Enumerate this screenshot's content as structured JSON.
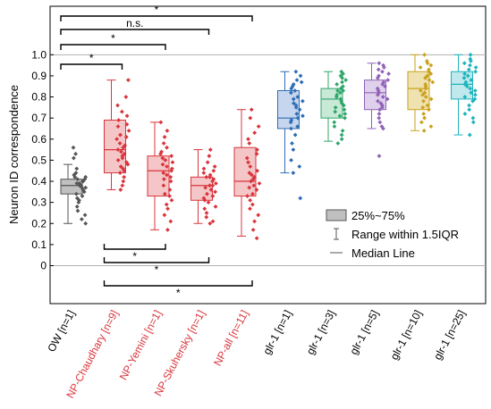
{
  "chart_data": {
    "type": "box",
    "ylabel": "Neuron ID correspondence",
    "ylim": [
      -0.18,
      1.23
    ],
    "yticks": [
      "0",
      "0.1",
      "0.2",
      "0.3",
      "0.4",
      "0.5",
      "0.6",
      "0.7",
      "0.8",
      "0.9",
      "1.0"
    ],
    "reference_lines": [
      0,
      1.0
    ],
    "categories": [
      {
        "label": "OW [n=1]",
        "label_color": "#000000",
        "color": "#555555",
        "fill": "#c0c0c0",
        "q1": 0.34,
        "median": 0.38,
        "q3": 0.41,
        "whisker_low": 0.2,
        "whisker_high": 0.48,
        "points": [
          0.56,
          0.53,
          0.51,
          0.46,
          0.44,
          0.43,
          0.42,
          0.42,
          0.41,
          0.41,
          0.4,
          0.4,
          0.39,
          0.39,
          0.38,
          0.38,
          0.37,
          0.37,
          0.36,
          0.35,
          0.34,
          0.33,
          0.32,
          0.31,
          0.3,
          0.28,
          0.26,
          0.24,
          0.22,
          0.2
        ]
      },
      {
        "label": "NP-Chaudhary [n=9]",
        "label_color": "#d9353c",
        "color": "#d9353c",
        "fill": "#f4c6c8",
        "q1": 0.44,
        "median": 0.55,
        "q3": 0.69,
        "whisker_low": 0.36,
        "whisker_high": 0.88,
        "points": [
          0.88,
          0.8,
          0.76,
          0.73,
          0.71,
          0.69,
          0.67,
          0.66,
          0.64,
          0.62,
          0.61,
          0.6,
          0.58,
          0.57,
          0.56,
          0.55,
          0.54,
          0.53,
          0.52,
          0.51,
          0.5,
          0.49,
          0.48,
          0.47,
          0.46,
          0.45,
          0.44,
          0.42,
          0.4,
          0.38,
          0.36
        ]
      },
      {
        "label": "NP-Yemini [n=1]",
        "label_color": "#d9353c",
        "color": "#d9353c",
        "fill": "#f4c6c8",
        "q1": 0.33,
        "median": 0.45,
        "q3": 0.52,
        "whisker_low": 0.17,
        "whisker_high": 0.68,
        "points": [
          0.68,
          0.64,
          0.61,
          0.58,
          0.56,
          0.54,
          0.53,
          0.52,
          0.51,
          0.5,
          0.49,
          0.48,
          0.47,
          0.46,
          0.45,
          0.44,
          0.43,
          0.42,
          0.41,
          0.4,
          0.38,
          0.36,
          0.34,
          0.33,
          0.31,
          0.29,
          0.27,
          0.24,
          0.21,
          0.17
        ]
      },
      {
        "label": "NP-Skuhersky [n=1]",
        "label_color": "#d9353c",
        "color": "#d9353c",
        "fill": "#f4c6c8",
        "q1": 0.31,
        "median": 0.38,
        "q3": 0.42,
        "whisker_low": 0.2,
        "whisker_high": 0.55,
        "points": [
          0.55,
          0.52,
          0.49,
          0.47,
          0.46,
          0.45,
          0.44,
          0.43,
          0.42,
          0.42,
          0.41,
          0.4,
          0.39,
          0.38,
          0.38,
          0.37,
          0.36,
          0.35,
          0.34,
          0.33,
          0.32,
          0.31,
          0.3,
          0.28,
          0.27,
          0.25,
          0.23,
          0.21,
          0.2
        ]
      },
      {
        "label": "NP-all [n=11]",
        "label_color": "#d9353c",
        "color": "#d9353c",
        "fill": "#f4c6c8",
        "q1": 0.33,
        "median": 0.4,
        "q3": 0.56,
        "whisker_low": 0.14,
        "whisker_high": 0.74,
        "points": [
          0.74,
          0.7,
          0.66,
          0.63,
          0.6,
          0.58,
          0.55,
          0.53,
          0.51,
          0.49,
          0.47,
          0.45,
          0.44,
          0.43,
          0.42,
          0.41,
          0.4,
          0.39,
          0.38,
          0.37,
          0.36,
          0.34,
          0.33,
          0.31,
          0.29,
          0.27,
          0.24,
          0.21,
          0.17,
          0.13
        ]
      },
      {
        "label": "glr-1 [n=1]",
        "label_color": "#000000",
        "color": "#2e6db5",
        "fill": "#c6d6ee",
        "q1": 0.65,
        "median": 0.7,
        "q3": 0.83,
        "whisker_low": 0.44,
        "whisker_high": 0.92,
        "points": [
          0.92,
          0.9,
          0.88,
          0.87,
          0.86,
          0.85,
          0.84,
          0.83,
          0.82,
          0.8,
          0.79,
          0.78,
          0.77,
          0.76,
          0.75,
          0.74,
          0.72,
          0.71,
          0.7,
          0.69,
          0.68,
          0.66,
          0.65,
          0.62,
          0.58,
          0.55,
          0.5,
          0.47,
          0.44,
          0.32
        ]
      },
      {
        "label": "glr-1 [n=3]",
        "label_color": "#000000",
        "color": "#2fa66a",
        "fill": "#c8e9d6",
        "q1": 0.7,
        "median": 0.79,
        "q3": 0.84,
        "whisker_low": 0.59,
        "whisker_high": 0.92,
        "points": [
          0.92,
          0.91,
          0.9,
          0.89,
          0.88,
          0.87,
          0.86,
          0.85,
          0.84,
          0.83,
          0.83,
          0.82,
          0.81,
          0.8,
          0.79,
          0.78,
          0.77,
          0.76,
          0.75,
          0.74,
          0.73,
          0.72,
          0.71,
          0.7,
          0.68,
          0.66,
          0.64,
          0.62,
          0.6,
          0.58
        ]
      },
      {
        "label": "glr-1 [n=5]",
        "label_color": "#000000",
        "color": "#9162b8",
        "fill": "#dfd0ec",
        "q1": 0.74,
        "median": 0.82,
        "q3": 0.88,
        "whisker_low": 0.65,
        "whisker_high": 0.96,
        "points": [
          0.96,
          0.95,
          0.94,
          0.93,
          0.92,
          0.91,
          0.9,
          0.89,
          0.88,
          0.87,
          0.86,
          0.85,
          0.84,
          0.83,
          0.82,
          0.81,
          0.8,
          0.79,
          0.78,
          0.77,
          0.76,
          0.75,
          0.74,
          0.72,
          0.7,
          0.68,
          0.66,
          0.65,
          0.52
        ]
      },
      {
        "label": "glr-1 [n=10]",
        "label_color": "#000000",
        "color": "#c9a21f",
        "fill": "#f0e2b0",
        "q1": 0.74,
        "median": 0.84,
        "q3": 0.92,
        "whisker_low": 0.64,
        "whisker_high": 1.0,
        "points": [
          1.0,
          0.97,
          0.96,
          0.95,
          0.94,
          0.93,
          0.92,
          0.91,
          0.9,
          0.89,
          0.88,
          0.87,
          0.86,
          0.85,
          0.84,
          0.83,
          0.82,
          0.81,
          0.8,
          0.79,
          0.78,
          0.76,
          0.75,
          0.74,
          0.72,
          0.7,
          0.68,
          0.66,
          0.64
        ]
      },
      {
        "label": "glr-1 [n=25]",
        "label_color": "#000000",
        "color": "#1fb3bd",
        "fill": "#bfe9ec",
        "q1": 0.79,
        "median": 0.86,
        "q3": 0.92,
        "whisker_low": 0.62,
        "whisker_high": 1.0,
        "points": [
          1.0,
          0.98,
          0.97,
          0.96,
          0.95,
          0.94,
          0.93,
          0.92,
          0.91,
          0.9,
          0.89,
          0.88,
          0.87,
          0.86,
          0.85,
          0.84,
          0.83,
          0.82,
          0.81,
          0.8,
          0.79,
          0.78,
          0.76,
          0.74,
          0.72,
          0.7,
          0.68,
          0.62
        ]
      }
    ],
    "significance": [
      {
        "from": 0,
        "to": 4,
        "label": "*",
        "position": "above",
        "level": 4
      },
      {
        "from": 0,
        "to": 3,
        "label": "n.s.",
        "position": "above",
        "level": 3
      },
      {
        "from": 0,
        "to": 2,
        "label": "*",
        "position": "above",
        "level": 2
      },
      {
        "from": 0,
        "to": 1,
        "label": "*",
        "position": "above",
        "level": 1
      },
      {
        "from": 1,
        "to": 2,
        "label": "*",
        "position": "below",
        "level": 1
      },
      {
        "from": 1,
        "to": 3,
        "label": "*",
        "position": "below",
        "level": 2
      },
      {
        "from": 1,
        "to": 4,
        "label": "*",
        "position": "below",
        "level": 3
      }
    ],
    "legend": {
      "placement": "lower-right",
      "items": [
        {
          "kind": "box",
          "label": "25%~75%"
        },
        {
          "kind": "whisker",
          "label": "Range within 1.5IQR"
        },
        {
          "kind": "line",
          "label": "Median Line"
        }
      ]
    }
  }
}
